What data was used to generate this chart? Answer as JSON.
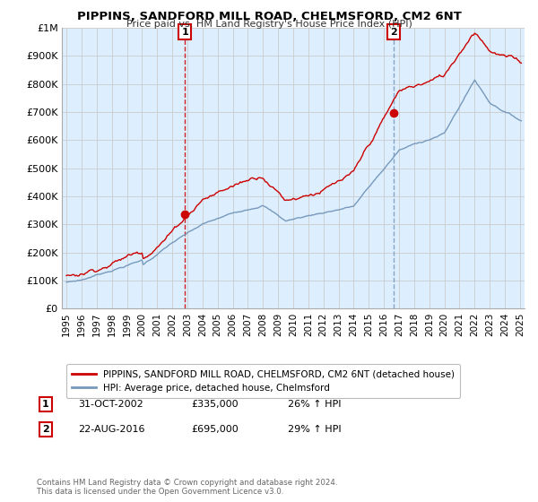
{
  "title": "PIPPINS, SANDFORD MILL ROAD, CHELMSFORD, CM2 6NT",
  "subtitle": "Price paid vs. HM Land Registry's House Price Index (HPI)",
  "line1_label": "PIPPINS, SANDFORD MILL ROAD, CHELMSFORD, CM2 6NT (detached house)",
  "line2_label": "HPI: Average price, detached house, Chelmsford",
  "line1_color": "#cc0000",
  "line2_color": "#7799bb",
  "sale1": {
    "date_x": 2002.83,
    "price": 335000,
    "label": "1",
    "hpi_pct": "26% ↑ HPI",
    "date_str": "31-OCT-2002"
  },
  "sale2": {
    "date_x": 2016.64,
    "price": 695000,
    "label": "2",
    "hpi_pct": "29% ↑ HPI",
    "date_str": "22-AUG-2016"
  },
  "sale1_vline_color": "#cc0000",
  "sale2_vline_color": "#7799bb",
  "ylim": [
    0,
    1000000
  ],
  "xlim": [
    1994.7,
    2025.3
  ],
  "yticks": [
    0,
    100000,
    200000,
    300000,
    400000,
    500000,
    600000,
    700000,
    800000,
    900000,
    1000000
  ],
  "ytick_labels": [
    "£0",
    "£100K",
    "£200K",
    "£300K",
    "£400K",
    "£500K",
    "£600K",
    "£700K",
    "£800K",
    "£900K",
    "£1M"
  ],
  "xticks": [
    1995,
    1996,
    1997,
    1998,
    1999,
    2000,
    2001,
    2002,
    2003,
    2004,
    2005,
    2006,
    2007,
    2008,
    2009,
    2010,
    2011,
    2012,
    2013,
    2014,
    2015,
    2016,
    2017,
    2018,
    2019,
    2020,
    2021,
    2022,
    2023,
    2024,
    2025
  ],
  "footer": "Contains HM Land Registry data © Crown copyright and database right 2024.\nThis data is licensed under the Open Government Licence v3.0.",
  "bg_fill_color": "#ddeeff",
  "background_color": "#ffffff",
  "grid_color": "#cccccc"
}
